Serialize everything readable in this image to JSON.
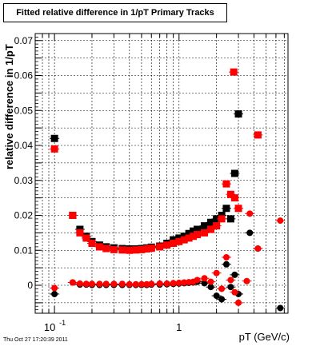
{
  "chart_data": {
    "type": "scatter",
    "title": "Fitted relative difference in 1/pT  Primary Tracks",
    "xlabel": "pT (GeV/c)",
    "ylabel": "relative difference in 1/pT",
    "xscale": "log",
    "xlim": [
      0.07,
      7.5
    ],
    "ylim": [
      -0.008,
      0.072
    ],
    "grid": true,
    "x_tick_labels": [
      {
        "x": 0.1,
        "label": "10",
        "exp": "-1"
      },
      {
        "x": 1,
        "label": "1"
      }
    ],
    "y_tick_labels": [
      {
        "y": 0,
        "label": "0"
      },
      {
        "y": 0.01,
        "label": "0.01"
      },
      {
        "y": 0.02,
        "label": "0.02"
      },
      {
        "y": 0.03,
        "label": "0.03"
      },
      {
        "y": 0.04,
        "label": "0.04"
      },
      {
        "y": 0.05,
        "label": "0.05"
      },
      {
        "y": 0.06,
        "label": "0.06"
      },
      {
        "y": 0.07,
        "label": "0.07"
      }
    ],
    "series": [
      {
        "marker": "square",
        "color": "#000000",
        "points": [
          [
            0.1,
            0.042
          ],
          [
            0.14,
            0.02
          ],
          [
            0.16,
            0.016
          ],
          [
            0.18,
            0.014
          ],
          [
            0.2,
            0.0125
          ],
          [
            0.23,
            0.0115
          ],
          [
            0.26,
            0.011
          ],
          [
            0.3,
            0.0107
          ],
          [
            0.35,
            0.0105
          ],
          [
            0.4,
            0.0104
          ],
          [
            0.45,
            0.0104
          ],
          [
            0.5,
            0.0105
          ],
          [
            0.55,
            0.0107
          ],
          [
            0.6,
            0.0109
          ],
          [
            0.7,
            0.0112
          ],
          [
            0.8,
            0.012
          ],
          [
            0.9,
            0.013
          ],
          [
            1.0,
            0.0135
          ],
          [
            1.1,
            0.014
          ],
          [
            1.2,
            0.0148
          ],
          [
            1.3,
            0.0155
          ],
          [
            1.4,
            0.016
          ],
          [
            1.6,
            0.017
          ],
          [
            1.8,
            0.018
          ],
          [
            2.0,
            0.019
          ],
          [
            2.2,
            0.02
          ],
          [
            2.4,
            0.022
          ],
          [
            2.6,
            0.019
          ],
          [
            2.8,
            0.032
          ],
          [
            3.0,
            0.049
          ]
        ]
      },
      {
        "marker": "square",
        "color": "#ff0000",
        "points": [
          [
            0.1,
            0.039
          ],
          [
            0.14,
            0.02
          ],
          [
            0.16,
            0.015
          ],
          [
            0.18,
            0.0135
          ],
          [
            0.2,
            0.012
          ],
          [
            0.23,
            0.011
          ],
          [
            0.26,
            0.0105
          ],
          [
            0.3,
            0.0102
          ],
          [
            0.35,
            0.0101
          ],
          [
            0.4,
            0.01
          ],
          [
            0.45,
            0.0101
          ],
          [
            0.5,
            0.0102
          ],
          [
            0.55,
            0.0104
          ],
          [
            0.6,
            0.0106
          ],
          [
            0.7,
            0.011
          ],
          [
            0.8,
            0.0115
          ],
          [
            0.9,
            0.012
          ],
          [
            1.0,
            0.0125
          ],
          [
            1.1,
            0.013
          ],
          [
            1.2,
            0.0135
          ],
          [
            1.3,
            0.014
          ],
          [
            1.4,
            0.0145
          ],
          [
            1.6,
            0.015
          ],
          [
            1.8,
            0.016
          ],
          [
            2.0,
            0.017
          ],
          [
            2.2,
            0.019
          ],
          [
            2.4,
            0.029
          ],
          [
            2.6,
            0.026
          ],
          [
            2.8,
            0.025
          ],
          [
            3.0,
            0.022
          ],
          [
            2.75,
            0.061
          ],
          [
            4.3,
            0.043
          ]
        ]
      },
      {
        "marker": "circle",
        "color": "#000000",
        "points": [
          [
            0.1,
            -0.0025
          ],
          [
            0.14,
            0.0008
          ],
          [
            0.16,
            0.0002
          ],
          [
            0.18,
            0.0002
          ],
          [
            0.2,
            0.0001
          ],
          [
            0.23,
            0.0001
          ],
          [
            0.26,
            0.0001
          ],
          [
            0.3,
            0.0001
          ],
          [
            0.35,
            0.0001
          ],
          [
            0.4,
            0.0001
          ],
          [
            0.45,
            0.0001
          ],
          [
            0.5,
            0.0001
          ],
          [
            0.55,
            0.0001
          ],
          [
            0.6,
            0.0002
          ],
          [
            0.7,
            0.0002
          ],
          [
            0.8,
            0.0003
          ],
          [
            0.9,
            0.0004
          ],
          [
            1.0,
            0.0005
          ],
          [
            1.1,
            0.0006
          ],
          [
            1.2,
            0.0007
          ],
          [
            1.3,
            0.0008
          ],
          [
            1.4,
            0.001
          ],
          [
            1.6,
            0.0006
          ],
          [
            1.8,
            -0.0005
          ],
          [
            2.0,
            -0.003
          ],
          [
            2.2,
            -0.004
          ],
          [
            2.4,
            0.006
          ],
          [
            2.6,
            -0.0005
          ],
          [
            2.8,
            0.003
          ],
          [
            3.0,
            -0.0025
          ],
          [
            3.7,
            0.015
          ],
          [
            4.3,
            0.0105
          ],
          [
            6.5,
            -0.0065
          ]
        ]
      },
      {
        "marker": "circle",
        "color": "#ff0000",
        "points": [
          [
            0.1,
            -0.0008
          ],
          [
            0.14,
            0.0008
          ],
          [
            0.16,
            0.0005
          ],
          [
            0.18,
            0.0004
          ],
          [
            0.2,
            0.0004
          ],
          [
            0.23,
            0.0004
          ],
          [
            0.26,
            0.0004
          ],
          [
            0.3,
            0.0004
          ],
          [
            0.35,
            0.0004
          ],
          [
            0.4,
            0.0003
          ],
          [
            0.45,
            0.0003
          ],
          [
            0.5,
            0.0003
          ],
          [
            0.55,
            0.0003
          ],
          [
            0.6,
            0.0004
          ],
          [
            0.7,
            0.0005
          ],
          [
            0.8,
            0.0005
          ],
          [
            0.9,
            0.0006
          ],
          [
            1.0,
            0.0007
          ],
          [
            1.1,
            0.0008
          ],
          [
            1.2,
            0.0009
          ],
          [
            1.3,
            0.001
          ],
          [
            1.4,
            0.0015
          ],
          [
            1.6,
            0.002
          ],
          [
            1.8,
            0.001
          ],
          [
            2.0,
            0.0035
          ],
          [
            2.2,
            -0.001
          ],
          [
            2.4,
            0.008
          ],
          [
            2.6,
            0.0015
          ],
          [
            2.8,
            -0.002
          ],
          [
            3.0,
            -0.005
          ],
          [
            3.7,
            0.0205
          ],
          [
            4.3,
            0.0105
          ],
          [
            3.5,
            0.0012
          ],
          [
            6.5,
            0.0185
          ]
        ]
      }
    ]
  },
  "timestamp": "Thu Oct 27 17:20:39 2011"
}
